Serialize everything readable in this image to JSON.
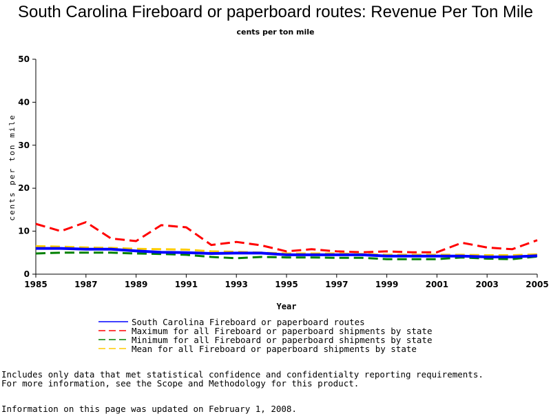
{
  "chart_data": {
    "type": "line",
    "title": "South Carolina Fireboard or paperboard routes: Revenue Per Ton Mile",
    "subtitle": "cents per ton mile",
    "xlabel": "Year",
    "ylabel": "cents per ton mile",
    "xlim": [
      1985,
      2005
    ],
    "ylim": [
      0,
      50
    ],
    "x_ticks": [
      1985,
      1987,
      1989,
      1991,
      1993,
      1995,
      1997,
      1999,
      2001,
      2003,
      2005
    ],
    "y_ticks": [
      0,
      10,
      20,
      30,
      40,
      50
    ],
    "grid": false,
    "legend_position": "bottom",
    "x": [
      1985,
      1986,
      1987,
      1988,
      1989,
      1990,
      1991,
      1992,
      1993,
      1994,
      1995,
      1996,
      1997,
      1998,
      1999,
      2000,
      2001,
      2002,
      2003,
      2004,
      2005
    ],
    "series": [
      {
        "name": "South Carolina Fireboard or paperboard routes",
        "color": "#0000ff",
        "dash": "solid",
        "values": [
          6.0,
          6.0,
          5.8,
          5.8,
          5.4,
          5.1,
          5.0,
          4.8,
          4.9,
          4.9,
          4.5,
          4.5,
          4.5,
          4.5,
          4.2,
          4.2,
          4.2,
          4.2,
          4.0,
          4.0,
          4.3
        ]
      },
      {
        "name": "Maximum for all Fireboard or paperboard shipments by state",
        "color": "#ff0000",
        "dash": "dashed",
        "values": [
          11.7,
          10.0,
          12.1,
          8.3,
          7.7,
          11.4,
          10.9,
          6.8,
          7.5,
          6.7,
          5.3,
          5.8,
          5.3,
          5.1,
          5.3,
          5.1,
          5.1,
          7.3,
          6.2,
          5.8,
          7.9
        ]
      },
      {
        "name": "Minimum for all Fireboard or paperboard shipments by state",
        "color": "#008000",
        "dash": "dashed",
        "values": [
          4.8,
          5.0,
          5.0,
          5.0,
          4.8,
          4.7,
          4.5,
          4.0,
          3.7,
          4.0,
          3.9,
          3.9,
          3.8,
          3.8,
          3.5,
          3.5,
          3.5,
          3.9,
          3.6,
          3.5,
          4.1
        ]
      },
      {
        "name": "Mean for all Fireboard or paperboard shipments by state",
        "color": "#ffcc00",
        "dash": "dashed",
        "values": [
          6.5,
          6.4,
          6.2,
          6.1,
          5.9,
          5.8,
          5.7,
          5.3,
          5.2,
          5.0,
          4.8,
          4.8,
          4.8,
          4.7,
          4.5,
          4.5,
          4.5,
          4.5,
          4.4,
          4.4,
          4.6
        ]
      }
    ]
  },
  "notes": {
    "line1": "Includes only data that met statistical confidence and confidentialty reporting requirements.",
    "line2": "For more information, see the Scope and Methodology for this product.",
    "updated": "Information on this page was updated on February 1, 2008."
  }
}
